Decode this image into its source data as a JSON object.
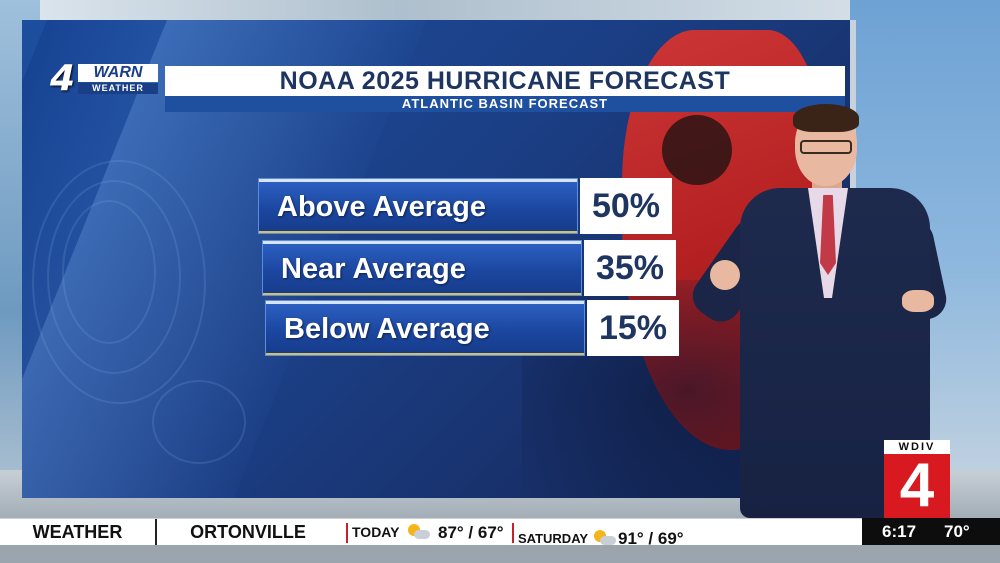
{
  "logo": {
    "number": "4",
    "brand": "WARN",
    "sub": "WEATHER"
  },
  "graphic": {
    "title": "NOAA 2025 HURRICANE FORECAST",
    "subtitle": "ATLANTIC BASIN FORECAST",
    "rows": [
      {
        "label": "Above Average",
        "value": "50%"
      },
      {
        "label": "Near Average",
        "value": "35%"
      },
      {
        "label": "Below Average",
        "value": "15%"
      }
    ]
  },
  "station_bug": {
    "call_letters": "WDIV",
    "channel": "4"
  },
  "ticker": {
    "category": "WEATHER",
    "location": "ORTONVILLE",
    "days": [
      {
        "name": "TODAY",
        "icon": "partly-sunny-icon",
        "temps": "87° / 67°"
      },
      {
        "name": "SATURDAY",
        "icon": "partly-sunny-icon",
        "temps": "91° / 69°"
      }
    ],
    "time": "6:17",
    "current_temp": "70°"
  },
  "colors": {
    "brand_blue": "#1b3f86",
    "station_red": "#d8191f",
    "title_text": "#1d3560"
  }
}
